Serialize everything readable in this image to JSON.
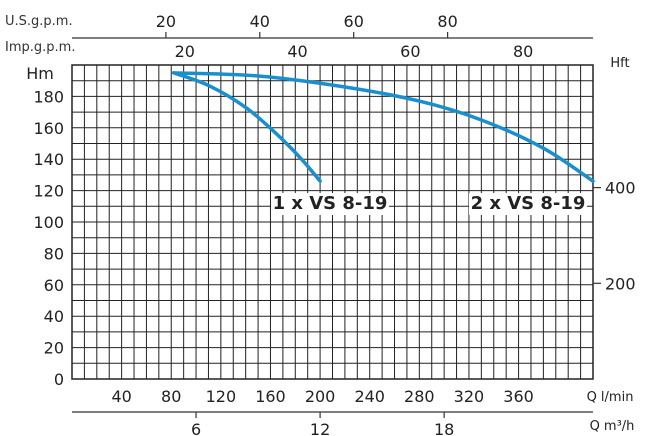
{
  "chart_data": {
    "type": "line",
    "x_unit_label": "Q l/min",
    "x_ticks": [
      "40",
      "80",
      "120",
      "160",
      "200",
      "240",
      "280",
      "320",
      "360"
    ],
    "xlim": [
      0,
      420
    ],
    "y_left_label": "Hm",
    "y_ticks": [
      "0",
      "20",
      "40",
      "60",
      "80",
      "100",
      "120",
      "140",
      "160",
      "180"
    ],
    "ylim": [
      0,
      200
    ],
    "y_right_label": "Hft",
    "y_right_ticks": [
      "200",
      "400"
    ],
    "secondary_x_axes": [
      {
        "label": "Q m³/h",
        "ticks": [
          "6",
          "12",
          "18"
        ]
      },
      {
        "label": "Imp.g.p.m.",
        "ticks": [
          "20",
          "40",
          "60",
          "80"
        ]
      },
      {
        "label": "U.S.g.p.m.",
        "ticks": [
          "20",
          "40",
          "60",
          "80"
        ]
      }
    ],
    "series": [
      {
        "name": "1 x VS 8-19",
        "x": [
          82,
          110,
          140,
          165,
          185,
          200
        ],
        "y": [
          195,
          187,
          173,
          156,
          140,
          126
        ],
        "color": "#1a8fd0"
      },
      {
        "name": "2 x VS 8-19",
        "x": [
          82,
          150,
          220,
          280,
          330,
          380,
          420
        ],
        "y": [
          195,
          193,
          186,
          177,
          165,
          147,
          126
        ],
        "color": "#1a8fd0"
      }
    ],
    "grid": true
  }
}
